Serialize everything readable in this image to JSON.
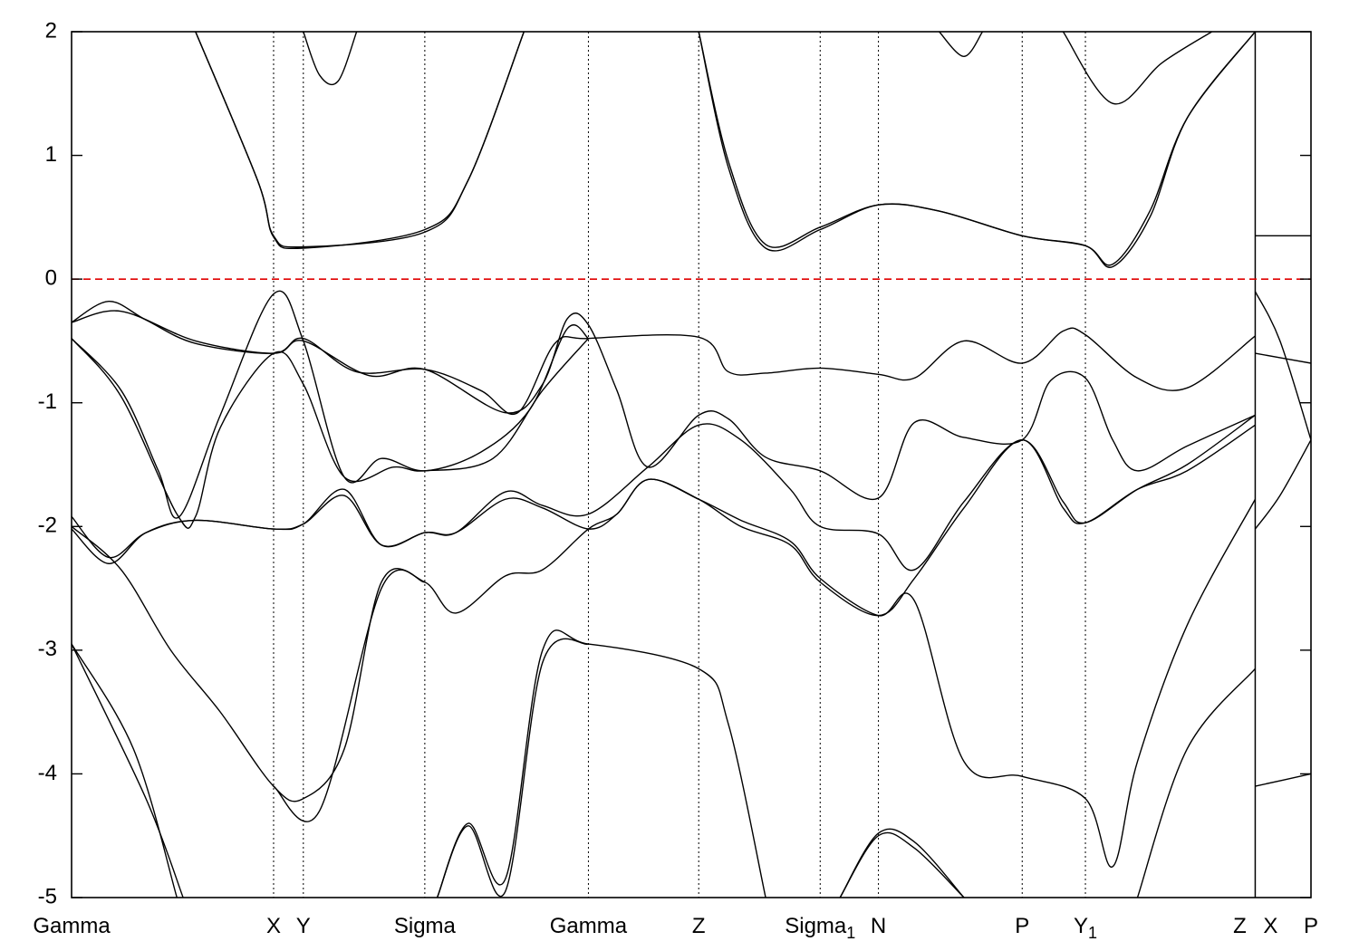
{
  "chart_data": {
    "type": "line",
    "title": "",
    "xlabel": "",
    "ylabel": "",
    "ylim": [
      -5,
      2
    ],
    "xlim": [
      0,
      1.0
    ],
    "y_ticks": [
      "2",
      "1",
      "0",
      "-1",
      "-2",
      "-3",
      "-4",
      "-5"
    ],
    "y_tick_values": [
      2,
      1,
      0,
      -1,
      -2,
      -3,
      -4,
      -5
    ],
    "grid": "vertical dotted lines at high-symmetry points",
    "reference_line": {
      "y": 0,
      "color": "#e00000",
      "style": "dashed"
    },
    "k_points": [
      {
        "label": "Gamma",
        "x": 0.0
      },
      {
        "label": "X",
        "x": 0.163
      },
      {
        "label": "Y",
        "x": 0.187
      },
      {
        "label": "Sigma",
        "x": 0.285
      },
      {
        "label": "Gamma",
        "x": 0.417
      },
      {
        "label": "Z",
        "x": 0.506
      },
      {
        "label": "Sigma",
        "sub": "1",
        "x": 0.604
      },
      {
        "label": "N",
        "x": 0.651
      },
      {
        "label": "P",
        "x": 0.767
      },
      {
        "label": "Y",
        "sub": "1",
        "x": 0.818
      },
      {
        "label": "Z",
        "x": 0.955
      },
      {
        "label": "X",
        "x": 0.955
      },
      {
        "label": "P",
        "x": 1.0
      }
    ],
    "series": [
      {
        "values": [
          [
            0.0,
            -0.35
          ],
          [
            0.03,
            -0.18
          ],
          [
            0.06,
            -0.33
          ],
          [
            0.1,
            -0.52
          ],
          [
            0.163,
            -0.6
          ],
          [
            0.187,
            -0.48
          ],
          [
            0.23,
            -0.75
          ],
          [
            0.285,
            -0.73
          ],
          [
            0.33,
            -0.9
          ],
          [
            0.36,
            -1.08
          ],
          [
            0.39,
            -0.52
          ],
          [
            0.417,
            -0.48
          ],
          [
            0.506,
            -0.47
          ],
          [
            0.53,
            -0.75
          ],
          [
            0.56,
            -0.76
          ],
          [
            0.604,
            -0.72
          ],
          [
            0.651,
            -0.77
          ],
          [
            0.68,
            -0.8
          ],
          [
            0.72,
            -0.5
          ],
          [
            0.767,
            -0.68
          ],
          [
            0.8,
            -0.42
          ],
          [
            0.818,
            -0.45
          ],
          [
            0.86,
            -0.8
          ],
          [
            0.9,
            -0.88
          ],
          [
            0.955,
            -0.46
          ]
        ]
      },
      {
        "values": [
          [
            0.0,
            -0.35
          ],
          [
            0.04,
            -0.26
          ],
          [
            0.1,
            -0.5
          ],
          [
            0.163,
            -0.6
          ],
          [
            0.187,
            -0.5
          ],
          [
            0.24,
            -0.78
          ],
          [
            0.285,
            -0.73
          ],
          [
            0.35,
            -1.08
          ],
          [
            0.38,
            -0.85
          ],
          [
            0.4,
            -0.32
          ],
          [
            0.417,
            -0.37
          ],
          [
            0.44,
            -0.9
          ],
          [
            0.465,
            -1.52
          ],
          [
            0.506,
            -1.1
          ],
          [
            0.53,
            -1.13
          ],
          [
            0.56,
            -1.44
          ],
          [
            0.604,
            -1.55
          ],
          [
            0.651,
            -1.77
          ],
          [
            0.68,
            -1.16
          ],
          [
            0.72,
            -1.28
          ],
          [
            0.767,
            -1.3
          ],
          [
            0.79,
            -0.82
          ],
          [
            0.818,
            -0.8
          ],
          [
            0.84,
            -1.3
          ],
          [
            0.86,
            -1.55
          ],
          [
            0.9,
            -1.35
          ],
          [
            0.955,
            -1.1
          ]
        ]
      },
      {
        "values": [
          [
            0.0,
            -0.48
          ],
          [
            0.04,
            -0.9
          ],
          [
            0.07,
            -1.55
          ],
          [
            0.087,
            -1.92
          ],
          [
            0.12,
            -1.1
          ],
          [
            0.163,
            -0.12
          ],
          [
            0.187,
            -0.5
          ],
          [
            0.22,
            -1.6
          ],
          [
            0.25,
            -1.45
          ],
          [
            0.285,
            -1.55
          ],
          [
            0.33,
            -1.4
          ],
          [
            0.37,
            -1.05
          ],
          [
            0.4,
            -0.4
          ],
          [
            0.417,
            -0.48
          ]
        ]
      },
      {
        "values": [
          [
            0.0,
            -0.48
          ],
          [
            0.04,
            -0.95
          ],
          [
            0.085,
            -1.9
          ],
          [
            0.1,
            -1.92
          ],
          [
            0.12,
            -1.2
          ],
          [
            0.163,
            -0.6
          ],
          [
            0.187,
            -0.85
          ],
          [
            0.22,
            -1.6
          ],
          [
            0.26,
            -1.52
          ],
          [
            0.285,
            -1.55
          ],
          [
            0.34,
            -1.45
          ],
          [
            0.38,
            -0.9
          ],
          [
            0.417,
            -0.48
          ]
        ]
      },
      {
        "values": [
          [
            0.0,
            -1.92
          ],
          [
            0.03,
            -2.25
          ],
          [
            0.06,
            -2.05
          ],
          [
            0.1,
            -1.95
          ],
          [
            0.163,
            -2.02
          ],
          [
            0.187,
            -1.98
          ],
          [
            0.22,
            -1.7
          ],
          [
            0.25,
            -2.15
          ],
          [
            0.285,
            -2.05
          ],
          [
            0.31,
            -2.05
          ],
          [
            0.35,
            -1.72
          ],
          [
            0.38,
            -1.83
          ],
          [
            0.417,
            -1.9
          ],
          [
            0.465,
            -1.52
          ],
          [
            0.506,
            -1.18
          ],
          [
            0.54,
            -1.3
          ],
          [
            0.58,
            -1.7
          ],
          [
            0.604,
            -2.0
          ],
          [
            0.651,
            -2.06
          ],
          [
            0.68,
            -2.35
          ],
          [
            0.72,
            -1.8
          ],
          [
            0.767,
            -1.3
          ],
          [
            0.8,
            -1.8
          ],
          [
            0.818,
            -1.97
          ],
          [
            0.86,
            -1.7
          ],
          [
            0.9,
            -1.5
          ],
          [
            0.955,
            -1.1
          ]
        ]
      },
      {
        "values": [
          [
            0.0,
            -2.02
          ],
          [
            0.03,
            -2.3
          ],
          [
            0.06,
            -2.05
          ],
          [
            0.1,
            -1.95
          ],
          [
            0.163,
            -2.02
          ],
          [
            0.187,
            -1.98
          ],
          [
            0.22,
            -1.75
          ],
          [
            0.25,
            -2.15
          ],
          [
            0.285,
            -2.05
          ],
          [
            0.31,
            -2.05
          ],
          [
            0.35,
            -1.78
          ],
          [
            0.38,
            -1.85
          ],
          [
            0.417,
            -2.02
          ],
          [
            0.44,
            -1.9
          ],
          [
            0.465,
            -1.62
          ],
          [
            0.506,
            -1.78
          ],
          [
            0.54,
            -2.0
          ],
          [
            0.58,
            -2.15
          ],
          [
            0.604,
            -2.45
          ],
          [
            0.651,
            -2.72
          ],
          [
            0.68,
            -2.42
          ],
          [
            0.72,
            -1.85
          ],
          [
            0.767,
            -1.3
          ],
          [
            0.8,
            -1.85
          ],
          [
            0.818,
            -1.97
          ],
          [
            0.86,
            -1.7
          ],
          [
            0.9,
            -1.55
          ],
          [
            0.955,
            -1.18
          ]
        ]
      },
      {
        "values": [
          [
            0.0,
            -2.0
          ],
          [
            0.04,
            -2.35
          ],
          [
            0.08,
            -3.0
          ],
          [
            0.12,
            -3.5
          ],
          [
            0.163,
            -4.1
          ],
          [
            0.187,
            -4.2
          ],
          [
            0.22,
            -3.8
          ],
          [
            0.25,
            -2.45
          ],
          [
            0.285,
            -2.45
          ],
          [
            0.31,
            -2.7
          ],
          [
            0.35,
            -2.4
          ],
          [
            0.38,
            -2.35
          ],
          [
            0.417,
            -2.02
          ],
          [
            0.44,
            -1.9
          ],
          [
            0.465,
            -1.62
          ],
          [
            0.506,
            -1.78
          ],
          [
            0.54,
            -1.95
          ],
          [
            0.58,
            -2.12
          ],
          [
            0.604,
            -2.42
          ],
          [
            0.651,
            -2.72
          ],
          [
            0.68,
            -2.6
          ],
          [
            0.72,
            -3.9
          ],
          [
            0.767,
            -4.02
          ],
          [
            0.818,
            -4.2
          ],
          [
            0.84,
            -4.75
          ],
          [
            0.86,
            -3.9
          ],
          [
            0.9,
            -2.8
          ],
          [
            0.955,
            -1.78
          ]
        ]
      },
      {
        "values": [
          [
            0.0,
            -2.95
          ],
          [
            0.05,
            -3.8
          ],
          [
            0.085,
            -5.0
          ]
        ]
      },
      {
        "values": [
          [
            0.0,
            -2.95
          ],
          [
            0.06,
            -4.2
          ],
          [
            0.09,
            -5.0
          ]
        ]
      },
      {
        "values": [
          [
            0.163,
            -4.1
          ],
          [
            0.2,
            -4.3
          ],
          [
            0.25,
            -2.5
          ],
          [
            0.285,
            -2.45
          ]
        ]
      },
      {
        "values": [
          [
            0.295,
            -5.0
          ],
          [
            0.32,
            -4.4
          ],
          [
            0.35,
            -4.85
          ],
          [
            0.38,
            -3.0
          ],
          [
            0.417,
            -2.95
          ],
          [
            0.506,
            -3.15
          ],
          [
            0.53,
            -3.6
          ],
          [
            0.56,
            -5.0
          ]
        ]
      },
      {
        "values": [
          [
            0.295,
            -5.0
          ],
          [
            0.32,
            -4.42
          ],
          [
            0.35,
            -4.95
          ],
          [
            0.38,
            -3.1
          ],
          [
            0.417,
            -2.95
          ]
        ]
      },
      {
        "values": [
          [
            0.62,
            -5.0
          ],
          [
            0.651,
            -4.5
          ],
          [
            0.68,
            -4.6
          ],
          [
            0.72,
            -5.0
          ]
        ]
      },
      {
        "values": [
          [
            0.62,
            -5.0
          ],
          [
            0.651,
            -4.48
          ],
          [
            0.68,
            -4.55
          ],
          [
            0.72,
            -5.0
          ]
        ]
      },
      {
        "values": [
          [
            0.86,
            -5.0
          ],
          [
            0.9,
            -3.8
          ],
          [
            0.955,
            -3.15
          ]
        ]
      },
      {
        "values": [
          [
            0.1,
            2.0
          ],
          [
            0.15,
            0.8
          ],
          [
            0.163,
            0.35
          ],
          [
            0.187,
            0.26
          ],
          [
            0.285,
            0.38
          ],
          [
            0.32,
            0.8
          ],
          [
            0.365,
            2.0
          ]
        ]
      },
      {
        "values": [
          [
            0.1,
            2.0
          ],
          [
            0.15,
            0.8
          ],
          [
            0.163,
            0.34
          ],
          [
            0.187,
            0.25
          ],
          [
            0.285,
            0.4
          ],
          [
            0.32,
            0.8
          ],
          [
            0.365,
            2.0
          ]
        ]
      },
      {
        "values": [
          [
            0.187,
            2.0
          ],
          [
            0.2,
            1.65
          ],
          [
            0.215,
            1.6
          ],
          [
            0.23,
            2.0
          ]
        ]
      },
      {
        "values": [
          [
            0.506,
            2.0
          ],
          [
            0.53,
            0.9
          ],
          [
            0.56,
            0.25
          ],
          [
            0.604,
            0.4
          ],
          [
            0.651,
            0.6
          ],
          [
            0.7,
            0.55
          ],
          [
            0.767,
            0.35
          ],
          [
            0.818,
            0.27
          ],
          [
            0.84,
            0.1
          ],
          [
            0.87,
            0.5
          ],
          [
            0.9,
            1.3
          ],
          [
            0.955,
            2.0
          ]
        ]
      },
      {
        "values": [
          [
            0.506,
            2.0
          ],
          [
            0.53,
            0.95
          ],
          [
            0.56,
            0.28
          ],
          [
            0.604,
            0.42
          ],
          [
            0.651,
            0.6
          ],
          [
            0.7,
            0.55
          ],
          [
            0.767,
            0.35
          ],
          [
            0.818,
            0.27
          ],
          [
            0.84,
            0.12
          ],
          [
            0.87,
            0.55
          ],
          [
            0.9,
            1.3
          ],
          [
            0.955,
            2.0
          ]
        ]
      },
      {
        "values": [
          [
            0.7,
            2.0
          ],
          [
            0.72,
            1.8
          ],
          [
            0.735,
            2.0
          ]
        ]
      },
      {
        "values": [
          [
            0.8,
            2.0
          ],
          [
            0.84,
            1.42
          ],
          [
            0.88,
            1.75
          ],
          [
            0.92,
            2.0
          ]
        ]
      },
      {
        "values": [
          [
            0.955,
            0.35
          ],
          [
            1.0,
            0.35
          ]
        ]
      },
      {
        "values": [
          [
            0.955,
            -0.1
          ],
          [
            0.975,
            -0.5
          ],
          [
            1.0,
            -1.3
          ]
        ]
      },
      {
        "values": [
          [
            0.955,
            -0.6
          ],
          [
            1.0,
            -0.68
          ]
        ]
      },
      {
        "values": [
          [
            0.955,
            -2.02
          ],
          [
            0.975,
            -1.75
          ],
          [
            1.0,
            -1.3
          ]
        ]
      },
      {
        "values": [
          [
            0.955,
            -4.1
          ],
          [
            1.0,
            -4.0
          ]
        ]
      }
    ]
  }
}
